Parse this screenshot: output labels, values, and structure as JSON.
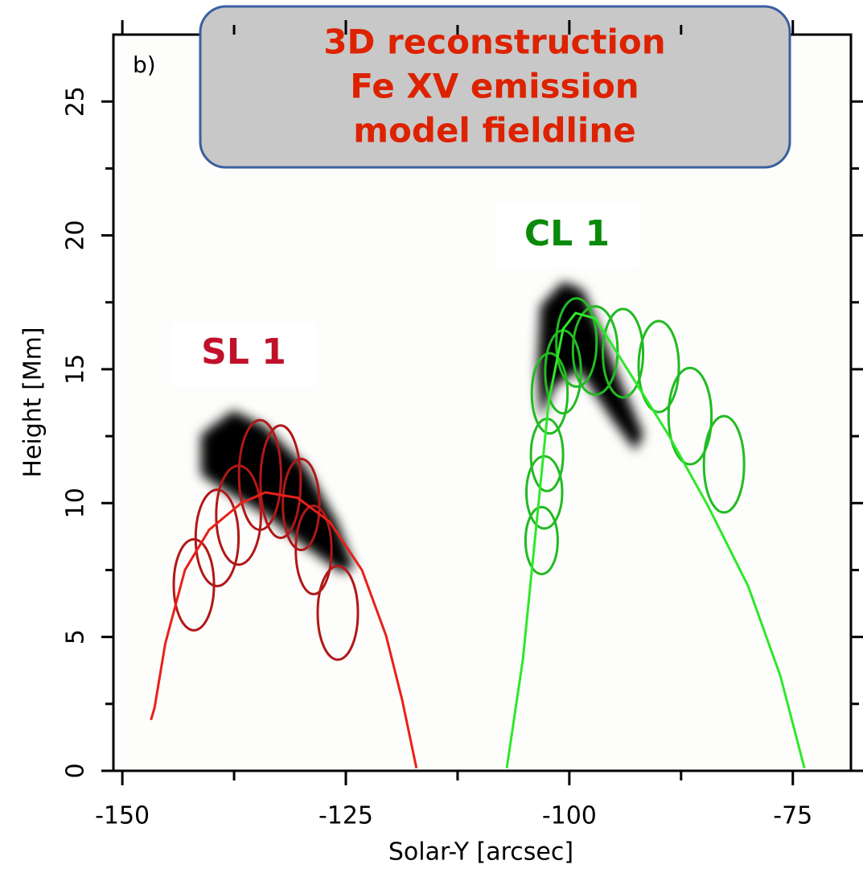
{
  "chart_data": {
    "type": "line",
    "title": [
      "3D reconstruction",
      "Fe XV emission",
      "model fieldline"
    ],
    "title_color": "#dd2200",
    "panel_label": "b)",
    "x_label": "Solar-Y [arcsec]",
    "y_label": "Height [Mm]",
    "xlim": [
      -151,
      -68.5
    ],
    "ylim": [
      0,
      27.5
    ],
    "xticks": [
      -150,
      -125,
      -100,
      -75
    ],
    "xminorticks": [
      -137.5,
      -112.5,
      -87.5
    ],
    "yticks": [
      0,
      5,
      10,
      15,
      20,
      25
    ],
    "yminorticks": [
      2.5,
      7.5,
      12.5,
      17.5,
      22.5
    ],
    "annotations": [
      {
        "text": "SL 1",
        "color": "#c0102a"
      },
      {
        "text": "CL 1",
        "color": "#0a8a0a"
      }
    ],
    "series": [
      {
        "color": "#e8201a",
        "x": [
          -146.8,
          -146.4,
          -145.2,
          -143.0,
          -140.3,
          -136.7,
          -134.0,
          -130.4,
          -126.8,
          -123.2,
          -120.5,
          -118.7,
          -117.1
        ],
        "values": [
          1.9,
          2.35,
          4.75,
          7.5,
          9.0,
          10.0,
          10.4,
          10.2,
          9.3,
          7.5,
          5.05,
          2.65,
          0.1
        ]
      },
      {
        "color": "#2ee82a",
        "x": [
          -107.0,
          -105.2,
          -103.2,
          -102.3,
          -100.7,
          -99.3,
          -97.1,
          -93.5,
          -89.0,
          -84.5,
          -80.0,
          -76.4,
          -73.7
        ],
        "values": [
          0.1,
          4.15,
          10.8,
          13.8,
          16.5,
          17.1,
          16.9,
          15.0,
          12.6,
          9.9,
          6.9,
          3.55,
          0.1
        ]
      }
    ],
    "ellipses": [
      {
        "color": "#b01818",
        "x": [
          -142.0,
          -139.4,
          -137.0,
          -134.6,
          -132.3,
          -130.0,
          -128.6,
          -125.9
        ],
        "values": [
          6.95,
          8.7,
          9.55,
          11.05,
          10.8,
          9.95,
          8.25,
          5.9
        ],
        "x_err": [
          2.25,
          2.4,
          2.5,
          2.35,
          2.25,
          2.05,
          2.0,
          2.25
        ],
        "y_err": [
          1.7,
          1.8,
          1.85,
          2.05,
          2.1,
          1.7,
          1.65,
          1.75
        ]
      },
      {
        "color": "#22bb22",
        "x": [
          -103.1,
          -102.8,
          -102.5,
          -102.2,
          -100.7,
          -99.2,
          -97.1,
          -94.0,
          -90.0,
          -86.5,
          -82.7
        ],
        "values": [
          8.6,
          10.4,
          11.8,
          14.1,
          14.9,
          16.0,
          15.7,
          15.6,
          15.1,
          13.25,
          11.45
        ],
        "x_err": [
          1.8,
          2.0,
          1.8,
          2.0,
          2.0,
          2.25,
          2.5,
          2.25,
          2.25,
          2.4,
          2.25
        ],
        "y_err": [
          1.25,
          1.35,
          1.35,
          1.5,
          1.55,
          1.65,
          1.65,
          1.65,
          1.7,
          1.8,
          1.8
        ]
      }
    ]
  }
}
